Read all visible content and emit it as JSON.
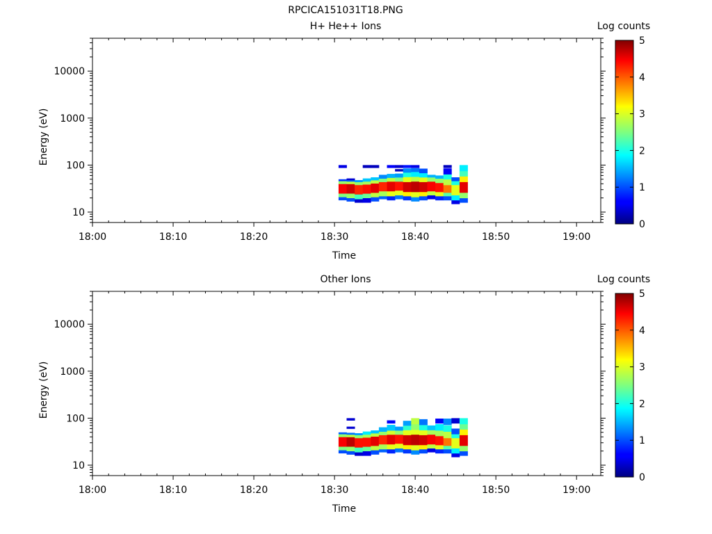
{
  "figure_title": "RPCICA151031T18.PNG",
  "chart_data": [
    {
      "type": "heatmap",
      "title": "H+ He++ Ions",
      "xlabel": "Time",
      "ylabel": "Energy (eV)",
      "x_ticks": [
        "18:00",
        "18:10",
        "18:20",
        "18:30",
        "18:40",
        "18:50",
        "19:00"
      ],
      "xlim": [
        "18:00",
        "19:03"
      ],
      "y_scale": "log",
      "y_ticks": [
        10,
        100,
        1000,
        10000
      ],
      "ylim": [
        6,
        50000
      ],
      "colorbar": {
        "label": "Log counts",
        "range": [
          0,
          5
        ],
        "ticks": [
          0,
          1,
          2,
          3,
          4,
          5
        ],
        "colormap": "jet"
      },
      "grid": false,
      "columns": [
        {
          "t": "18:31:00",
          "bins": [
            [
              18,
              21,
              1.0
            ],
            [
              21,
              25,
              2.5
            ],
            [
              25,
              40,
              4.4
            ],
            [
              40,
              46,
              2.6
            ],
            [
              46,
              50,
              0.9
            ],
            [
              88,
              100,
              0.5
            ]
          ]
        },
        {
          "t": "18:32:00",
          "bins": [
            [
              17,
              20,
              1.0
            ],
            [
              20,
              25,
              2.6
            ],
            [
              25,
              40,
              4.6
            ],
            [
              40,
              45,
              2.8
            ],
            [
              45,
              49,
              1.2
            ],
            [
              48,
              52,
              0.4
            ]
          ]
        },
        {
          "t": "18:33:00",
          "bins": [
            [
              16,
              19,
              0.4
            ],
            [
              19,
              24,
              2.2
            ],
            [
              24,
              38,
              4.2
            ],
            [
              38,
              44,
              2.6
            ],
            [
              44,
              48,
              1.4
            ]
          ]
        },
        {
          "t": "18:34:00",
          "bins": [
            [
              16,
              20,
              0.5
            ],
            [
              20,
              25,
              2.4
            ],
            [
              25,
              39,
              4.3
            ],
            [
              39,
              45,
              2.7
            ],
            [
              45,
              52,
              1.6
            ],
            [
              88,
              100,
              0.3
            ]
          ]
        },
        {
          "t": "18:35:00",
          "bins": [
            [
              17,
              21,
              1.0
            ],
            [
              21,
              26,
              2.8
            ],
            [
              26,
              41,
              4.5
            ],
            [
              41,
              48,
              2.8
            ],
            [
              48,
              55,
              1.6
            ],
            [
              88,
              100,
              0.3
            ]
          ]
        },
        {
          "t": "18:36:00",
          "bins": [
            [
              19,
              22,
              1.1
            ],
            [
              22,
              28,
              2.7
            ],
            [
              28,
              44,
              4.2
            ],
            [
              44,
              52,
              2.5
            ],
            [
              52,
              62,
              1.3
            ]
          ]
        },
        {
          "t": "18:37:00",
          "bins": [
            [
              18,
              22,
              0.8
            ],
            [
              22,
              28,
              3.0
            ],
            [
              28,
              45,
              4.5
            ],
            [
              45,
              54,
              2.8
            ],
            [
              54,
              65,
              1.5
            ],
            [
              88,
              100,
              0.6
            ]
          ]
        },
        {
          "t": "18:38:00",
          "bins": [
            [
              19,
              23,
              1.2
            ],
            [
              23,
              29,
              3.0
            ],
            [
              29,
              45,
              4.3
            ],
            [
              45,
              55,
              2.5
            ],
            [
              55,
              66,
              1.4
            ],
            [
              74,
              82,
              0.3
            ],
            [
              88,
              100,
              0.4
            ]
          ]
        },
        {
          "t": "18:39:00",
          "bins": [
            [
              18,
              22,
              0.9
            ],
            [
              22,
              27,
              3.2
            ],
            [
              27,
              44,
              4.6
            ],
            [
              44,
              56,
              3.0
            ],
            [
              56,
              70,
              2.0
            ],
            [
              70,
              85,
              1.3
            ],
            [
              88,
              100,
              0.7
            ]
          ]
        },
        {
          "t": "18:40:00",
          "bins": [
            [
              17,
              21,
              1.3
            ],
            [
              21,
              27,
              3.0
            ],
            [
              27,
              45,
              4.7
            ],
            [
              45,
              57,
              2.8
            ],
            [
              57,
              72,
              1.8
            ],
            [
              72,
              86,
              1.2
            ],
            [
              88,
              100,
              0.5
            ]
          ]
        },
        {
          "t": "18:41:00",
          "bins": [
            [
              18,
              22,
              1.0
            ],
            [
              22,
              27,
              3.2
            ],
            [
              27,
              44,
              4.6
            ],
            [
              44,
              55,
              3.0
            ],
            [
              55,
              68,
              1.8
            ],
            [
              68,
              84,
              1.0
            ]
          ]
        },
        {
          "t": "18:42:00",
          "bins": [
            [
              19,
              23,
              0.5
            ],
            [
              23,
              28,
              2.8
            ],
            [
              28,
              45,
              4.4
            ],
            [
              45,
              55,
              2.6
            ],
            [
              55,
              62,
              1.5
            ]
          ]
        },
        {
          "t": "18:43:00",
          "bins": [
            [
              18,
              22,
              0.8
            ],
            [
              22,
              27,
              3.0
            ],
            [
              27,
              42,
              4.3
            ],
            [
              42,
              52,
              2.6
            ],
            [
              52,
              60,
              1.5
            ]
          ]
        },
        {
          "t": "18:44:00",
          "bins": [
            [
              18,
              22,
              1.0
            ],
            [
              22,
              26,
              2.3
            ],
            [
              26,
              38,
              3.8
            ],
            [
              38,
              50,
              2.8
            ],
            [
              50,
              64,
              2.0
            ],
            [
              64,
              85,
              0.6
            ],
            [
              88,
              100,
              0.3
            ]
          ]
        },
        {
          "t": "18:45:00",
          "bins": [
            [
              15,
              18,
              0.5
            ],
            [
              18,
              23,
              1.8
            ],
            [
              23,
              38,
              3.0
            ],
            [
              38,
              46,
              2.0
            ],
            [
              46,
              55,
              1.0
            ]
          ]
        },
        {
          "t": "18:46:00",
          "bins": [
            [
              16,
              20,
              1.0
            ],
            [
              20,
              26,
              2.6
            ],
            [
              26,
              44,
              4.5
            ],
            [
              44,
              58,
              3.2
            ],
            [
              58,
              75,
              2.2
            ],
            [
              75,
              100,
              1.8
            ]
          ]
        }
      ]
    },
    {
      "type": "heatmap",
      "title": "Other Ions",
      "xlabel": "Time",
      "ylabel": "Energy (eV)",
      "x_ticks": [
        "18:00",
        "18:10",
        "18:20",
        "18:30",
        "18:40",
        "18:50",
        "19:00"
      ],
      "xlim": [
        "18:00",
        "19:03"
      ],
      "y_scale": "log",
      "y_ticks": [
        10,
        100,
        1000,
        10000
      ],
      "ylim": [
        6,
        50000
      ],
      "colorbar": {
        "label": "Log counts",
        "range": [
          0,
          5
        ],
        "ticks": [
          0,
          1,
          2,
          3,
          4,
          5
        ],
        "colormap": "jet"
      },
      "grid": false,
      "columns": [
        {
          "t": "18:31:00",
          "bins": [
            [
              18,
              21,
              1.0
            ],
            [
              21,
              25,
              2.5
            ],
            [
              25,
              40,
              4.4
            ],
            [
              40,
              46,
              2.6
            ],
            [
              46,
              50,
              1.1
            ]
          ]
        },
        {
          "t": "18:32:00",
          "bins": [
            [
              17,
              20,
              1.0
            ],
            [
              20,
              25,
              2.6
            ],
            [
              25,
              40,
              4.7
            ],
            [
              40,
              45,
              2.8
            ],
            [
              45,
              49,
              1.2
            ],
            [
              60,
              66,
              0.4
            ],
            [
              90,
              100,
              0.4
            ]
          ]
        },
        {
          "t": "18:33:00",
          "bins": [
            [
              16,
              19,
              0.4
            ],
            [
              19,
              24,
              2.2
            ],
            [
              24,
              38,
              4.3
            ],
            [
              38,
              44,
              2.6
            ],
            [
              44,
              48,
              1.4
            ]
          ]
        },
        {
          "t": "18:34:00",
          "bins": [
            [
              16,
              20,
              0.5
            ],
            [
              20,
              25,
              2.4
            ],
            [
              25,
              39,
              4.3
            ],
            [
              39,
              45,
              2.7
            ],
            [
              45,
              52,
              1.8
            ]
          ]
        },
        {
          "t": "18:35:00",
          "bins": [
            [
              17,
              21,
              1.0
            ],
            [
              21,
              26,
              2.8
            ],
            [
              26,
              41,
              4.5
            ],
            [
              41,
              48,
              2.8
            ],
            [
              48,
              55,
              1.6
            ]
          ]
        },
        {
          "t": "18:36:00",
          "bins": [
            [
              19,
              22,
              1.1
            ],
            [
              22,
              28,
              2.7
            ],
            [
              28,
              44,
              4.2
            ],
            [
              44,
              52,
              2.6
            ],
            [
              52,
              64,
              1.5
            ]
          ]
        },
        {
          "t": "18:37:00",
          "bins": [
            [
              18,
              22,
              0.8
            ],
            [
              22,
              28,
              3.0
            ],
            [
              28,
              45,
              4.5
            ],
            [
              45,
              55,
              2.9
            ],
            [
              55,
              72,
              1.6
            ],
            [
              78,
              90,
              0.6
            ]
          ]
        },
        {
          "t": "18:38:00",
          "bins": [
            [
              19,
              23,
              1.2
            ],
            [
              23,
              29,
              3.0
            ],
            [
              29,
              45,
              4.3
            ],
            [
              45,
              55,
              2.6
            ],
            [
              55,
              66,
              1.4
            ]
          ]
        },
        {
          "t": "18:39:00",
          "bins": [
            [
              18,
              22,
              0.9
            ],
            [
              22,
              27,
              3.2
            ],
            [
              27,
              44,
              4.6
            ],
            [
              44,
              56,
              3.0
            ],
            [
              56,
              70,
              2.1
            ],
            [
              70,
              88,
              1.4
            ]
          ]
        },
        {
          "t": "18:40:00",
          "bins": [
            [
              17,
              21,
              1.3
            ],
            [
              21,
              27,
              3.0
            ],
            [
              27,
              45,
              4.7
            ],
            [
              45,
              57,
              3.0
            ],
            [
              57,
              75,
              2.6
            ],
            [
              75,
              100,
              2.8
            ]
          ]
        },
        {
          "t": "18:41:00",
          "bins": [
            [
              18,
              22,
              1.0
            ],
            [
              22,
              27,
              3.2
            ],
            [
              27,
              44,
              4.6
            ],
            [
              44,
              56,
              3.0
            ],
            [
              56,
              72,
              2.0
            ],
            [
              72,
              95,
              1.2
            ]
          ]
        },
        {
          "t": "18:42:00",
          "bins": [
            [
              19,
              23,
              0.5
            ],
            [
              23,
              28,
              2.8
            ],
            [
              28,
              45,
              4.4
            ],
            [
              45,
              56,
              2.7
            ],
            [
              56,
              70,
              1.6
            ]
          ]
        },
        {
          "t": "18:43:00",
          "bins": [
            [
              18,
              22,
              0.8
            ],
            [
              22,
              27,
              3.0
            ],
            [
              27,
              42,
              4.3
            ],
            [
              42,
              55,
              2.7
            ],
            [
              55,
              75,
              1.8
            ],
            [
              78,
              98,
              0.6
            ]
          ]
        },
        {
          "t": "18:44:00",
          "bins": [
            [
              18,
              22,
              1.0
            ],
            [
              22,
              26,
              2.3
            ],
            [
              26,
              38,
              3.8
            ],
            [
              38,
              52,
              2.8
            ],
            [
              52,
              70,
              2.0
            ],
            [
              72,
              98,
              1.3
            ]
          ]
        },
        {
          "t": "18:45:00",
          "bins": [
            [
              15,
              18,
              0.5
            ],
            [
              18,
              23,
              1.8
            ],
            [
              23,
              38,
              3.0
            ],
            [
              38,
              46,
              2.0
            ],
            [
              46,
              60,
              1.0
            ],
            [
              78,
              100,
              0.4
            ]
          ]
        },
        {
          "t": "18:46:00",
          "bins": [
            [
              16,
              20,
              1.0
            ],
            [
              20,
              26,
              2.6
            ],
            [
              26,
              44,
              4.5
            ],
            [
              44,
              58,
              3.2
            ],
            [
              58,
              75,
              2.4
            ],
            [
              75,
              100,
              2.0
            ]
          ]
        }
      ]
    }
  ]
}
